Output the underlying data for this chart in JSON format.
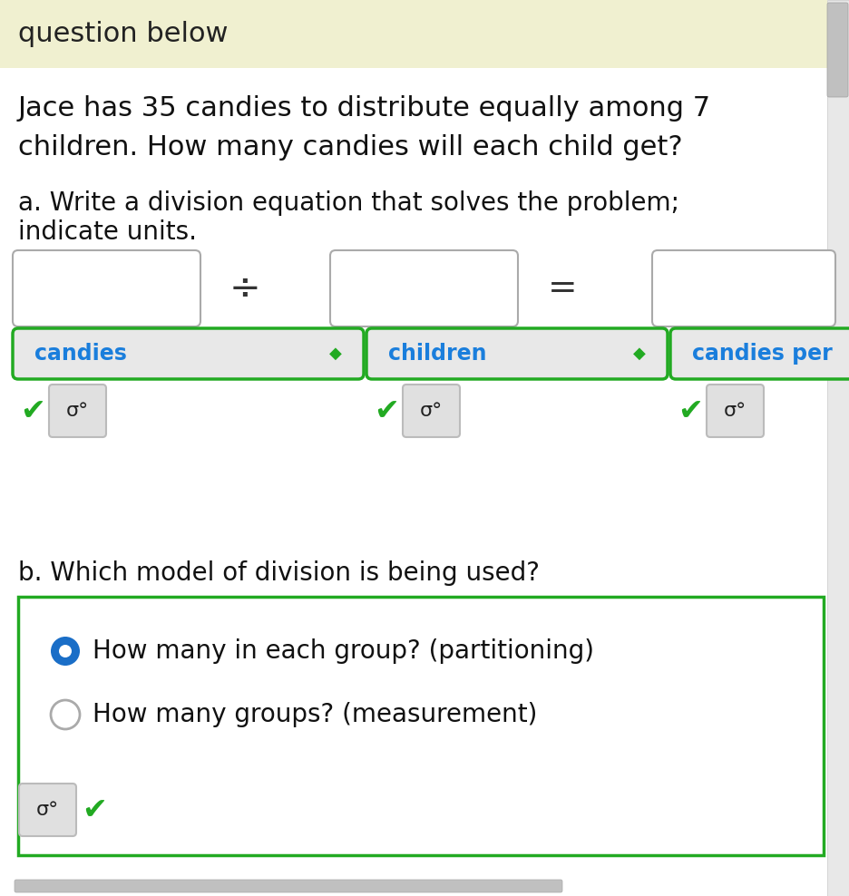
{
  "background_color": "#ffffff",
  "header_bg": "#f0f0d0",
  "header_text": "question below",
  "header_fontsize": 22,
  "problem_text_line1": "Jace has 35 candies to distribute equally among 7",
  "problem_text_line2": "children. How many candies will each child get?",
  "problem_fontsize": 22,
  "part_a_line1": "a. Write a division equation that solves the problem;",
  "part_a_line2": "indicate units.",
  "part_a_fontsize": 20,
  "div_symbol": "÷",
  "eq_symbol": "=",
  "dropdown1": "candies",
  "dropdown2": "children",
  "dropdown3": "candies per",
  "dropdown_color": "#e8e8e8",
  "dropdown_border": "#22aa22",
  "dropdown_text_color": "#1a7edc",
  "dropdown_border_text": "#22aa22",
  "check_color": "#22aa22",
  "key_bg": "#e0e0e0",
  "part_b_label": "b. Which model of division is being used?",
  "part_b_fontsize": 20,
  "option1": "How many in each group? (partitioning)",
  "option2": "How many groups? (measurement)",
  "option_fontsize": 20,
  "radio_selected_color": "#1a6ec7",
  "radio_unselected_fill": "#ffffff",
  "radio_unselected_border": "#aaaaaa",
  "green_box_color": "#22aa22",
  "scrollbar_bg": "#e8e8e8",
  "scrollbar_thumb": "#c0c0c0",
  "arrow_color": "#22aa22"
}
